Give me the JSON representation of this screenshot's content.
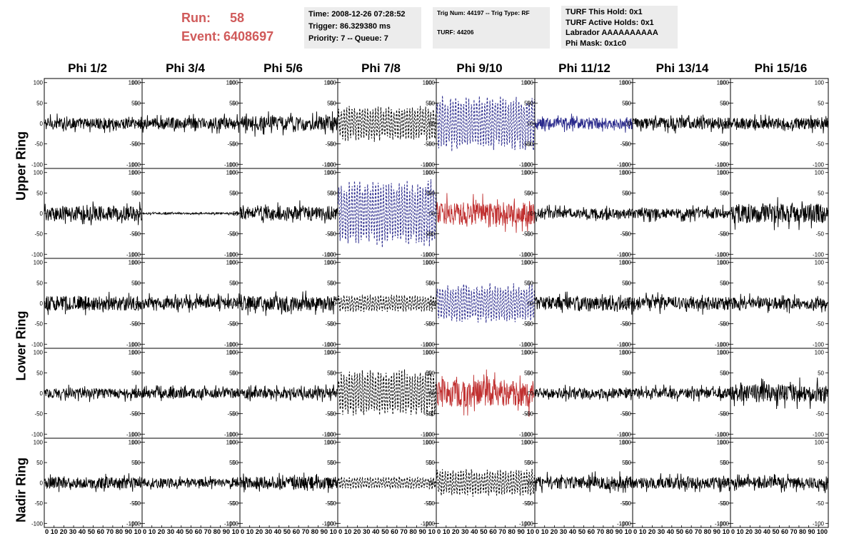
{
  "run": {
    "run_label": "Run:",
    "run_value": "58",
    "event_label": "Event:",
    "event_value": "6408697",
    "color": "#d05a5a"
  },
  "info_time": {
    "line1": "Time: 2008-12-26 07:28:52",
    "line2": "Trigger: 86.329380 ms",
    "line3": "Priority: 7 -- Queue: 7"
  },
  "info_trig": {
    "line1": "Trig Num: 44197 -- Trig Type: RF",
    "line2": "TURF: 44206"
  },
  "info_turf": {
    "line1": "TURF This Hold: 0x1",
    "line2": "TURF Active Holds: 0x1",
    "line3": "Labrador AAAAAAAAAA",
    "line4": "Phi Mask: 0x1c0"
  },
  "columns": [
    "Phi 1/2",
    "Phi 3/4",
    "Phi 5/6",
    "Phi 7/8",
    "Phi 9/10",
    "Phi 11/12",
    "Phi 13/14",
    "Phi 15/16"
  ],
  "ring_labels": {
    "upper": "Upper Ring",
    "lower": "Lower Ring",
    "nadir": "Nadir Ring"
  },
  "y_ticks": [
    "100",
    "50",
    "0",
    "-50",
    "-100"
  ],
  "x_tick_values": [
    "0",
    "10",
    "20",
    "30",
    "40",
    "50",
    "60",
    "70",
    "80",
    "90",
    "100"
  ],
  "x_tick_text": [
    "0 10 20 30 40 50 60 70 80 90 10",
    "0 10 20 30 40 50 60 70 80 90 10",
    "0 10 20 30 40 50 60 70 80 90 10",
    "0 10 20 30 40 50 60 70 80 90 10",
    "0 10 20 30 40 50 60 70 80 90 10",
    "0 10 20 30 40 50 60 70 80 90 10",
    "0 10 20 30 40 50 60 70 80 90 10",
    "0 10 20 30 40 50 60 70 80 90 100"
  ],
  "colors": {
    "normal": "#000000",
    "blue": "#2a2a8c",
    "red": "#c03030",
    "info_bg": "#ececec"
  },
  "chart_data": {
    "type": "line",
    "title": "",
    "xlim": [
      0,
      100
    ],
    "ylim": [
      -110,
      110
    ],
    "rows": 5,
    "cols": 8,
    "panels": [
      [
        {
          "style": "solid",
          "color": "normal",
          "amp": 14
        },
        {
          "style": "solid",
          "color": "normal",
          "amp": 14
        },
        {
          "style": "solid",
          "color": "normal",
          "amp": 18
        },
        {
          "style": "dashed",
          "color": "normal",
          "amp": 45
        },
        {
          "style": "dashed",
          "color": "blue",
          "amp": 70
        },
        {
          "style": "solid",
          "color": "blue",
          "amp": 14
        },
        {
          "style": "solid",
          "color": "normal",
          "amp": 14
        },
        {
          "style": "solid",
          "color": "normal",
          "amp": 14
        }
      ],
      [
        {
          "style": "solid",
          "color": "normal",
          "amp": 18
        },
        {
          "style": "solid",
          "color": "normal",
          "amp": 2
        },
        {
          "style": "solid",
          "color": "normal",
          "amp": 18
        },
        {
          "style": "dashed",
          "color": "blue",
          "amp": 85
        },
        {
          "style": "solid",
          "color": "red",
          "amp": 28
        },
        {
          "style": "solid",
          "color": "normal",
          "amp": 12
        },
        {
          "style": "solid",
          "color": "normal",
          "amp": 12
        },
        {
          "style": "solid",
          "color": "normal",
          "amp": 24
        }
      ],
      [
        {
          "style": "solid",
          "color": "normal",
          "amp": 18
        },
        {
          "style": "solid",
          "color": "normal",
          "amp": 14
        },
        {
          "style": "solid",
          "color": "normal",
          "amp": 18
        },
        {
          "style": "dashed",
          "color": "normal",
          "amp": 22
        },
        {
          "style": "dashed",
          "color": "blue",
          "amp": 50
        },
        {
          "style": "solid",
          "color": "normal",
          "amp": 16
        },
        {
          "style": "solid",
          "color": "normal",
          "amp": 16
        },
        {
          "style": "solid",
          "color": "normal",
          "amp": 14
        }
      ],
      [
        {
          "style": "solid",
          "color": "normal",
          "amp": 12
        },
        {
          "style": "solid",
          "color": "normal",
          "amp": 12
        },
        {
          "style": "solid",
          "color": "normal",
          "amp": 12
        },
        {
          "style": "dashed",
          "color": "normal",
          "amp": 60
        },
        {
          "style": "solid",
          "color": "red",
          "amp": 35
        },
        {
          "style": "solid",
          "color": "normal",
          "amp": 12
        },
        {
          "style": "solid",
          "color": "normal",
          "amp": 12
        },
        {
          "style": "solid",
          "color": "normal",
          "amp": 22
        }
      ],
      [
        {
          "style": "solid",
          "color": "normal",
          "amp": 14
        },
        {
          "style": "solid",
          "color": "normal",
          "amp": 10
        },
        {
          "style": "solid",
          "color": "normal",
          "amp": 16
        },
        {
          "style": "dashed",
          "color": "normal",
          "amp": 16
        },
        {
          "style": "dashed",
          "color": "normal",
          "amp": 35
        },
        {
          "style": "solid",
          "color": "normal",
          "amp": 16
        },
        {
          "style": "solid",
          "color": "normal",
          "amp": 14
        },
        {
          "style": "solid",
          "color": "normal",
          "amp": 14
        }
      ]
    ]
  }
}
